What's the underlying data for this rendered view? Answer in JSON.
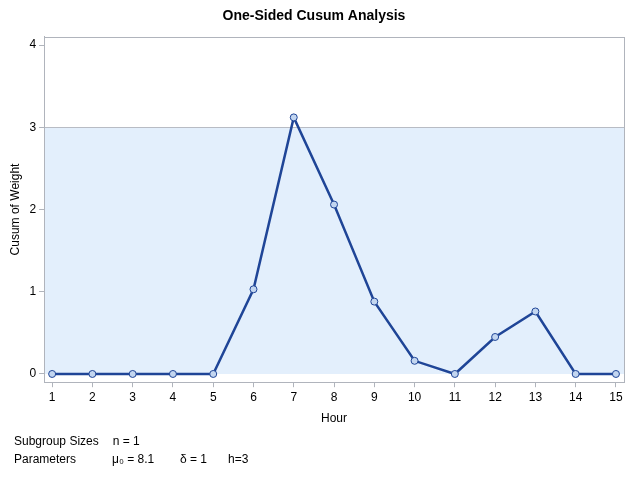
{
  "chart_data": {
    "type": "line",
    "title": "One-Sided Cusum Analysis",
    "x_label": "Hour",
    "y_label": "Cusum of Weight",
    "x": [
      1,
      2,
      3,
      4,
      5,
      6,
      7,
      8,
      9,
      10,
      11,
      12,
      13,
      14,
      15
    ],
    "values": [
      0,
      0,
      0,
      0,
      0,
      1.03,
      3.12,
      2.06,
      0.88,
      0.16,
      0,
      0.45,
      0.76,
      0,
      0
    ],
    "color": "#1f4597",
    "marker": "circle",
    "line_style": "solid",
    "xlim": [
      0.8,
      15.2
    ],
    "xticks": [
      1,
      2,
      3,
      4,
      5,
      6,
      7,
      8,
      9,
      10,
      11,
      12,
      13,
      14,
      15
    ],
    "ylim": [
      -0.1,
      4.1
    ],
    "yticks": [
      0,
      1,
      2,
      3,
      4
    ],
    "grid": false,
    "band": {
      "from": 0,
      "to": 3,
      "color": "#e3effc"
    },
    "footer": [
      [
        "Subgroup Sizes",
        "n = 1"
      ],
      [
        "Parameters",
        "μ₀ = 8.1",
        "δ = 1",
        "h=3"
      ]
    ]
  }
}
